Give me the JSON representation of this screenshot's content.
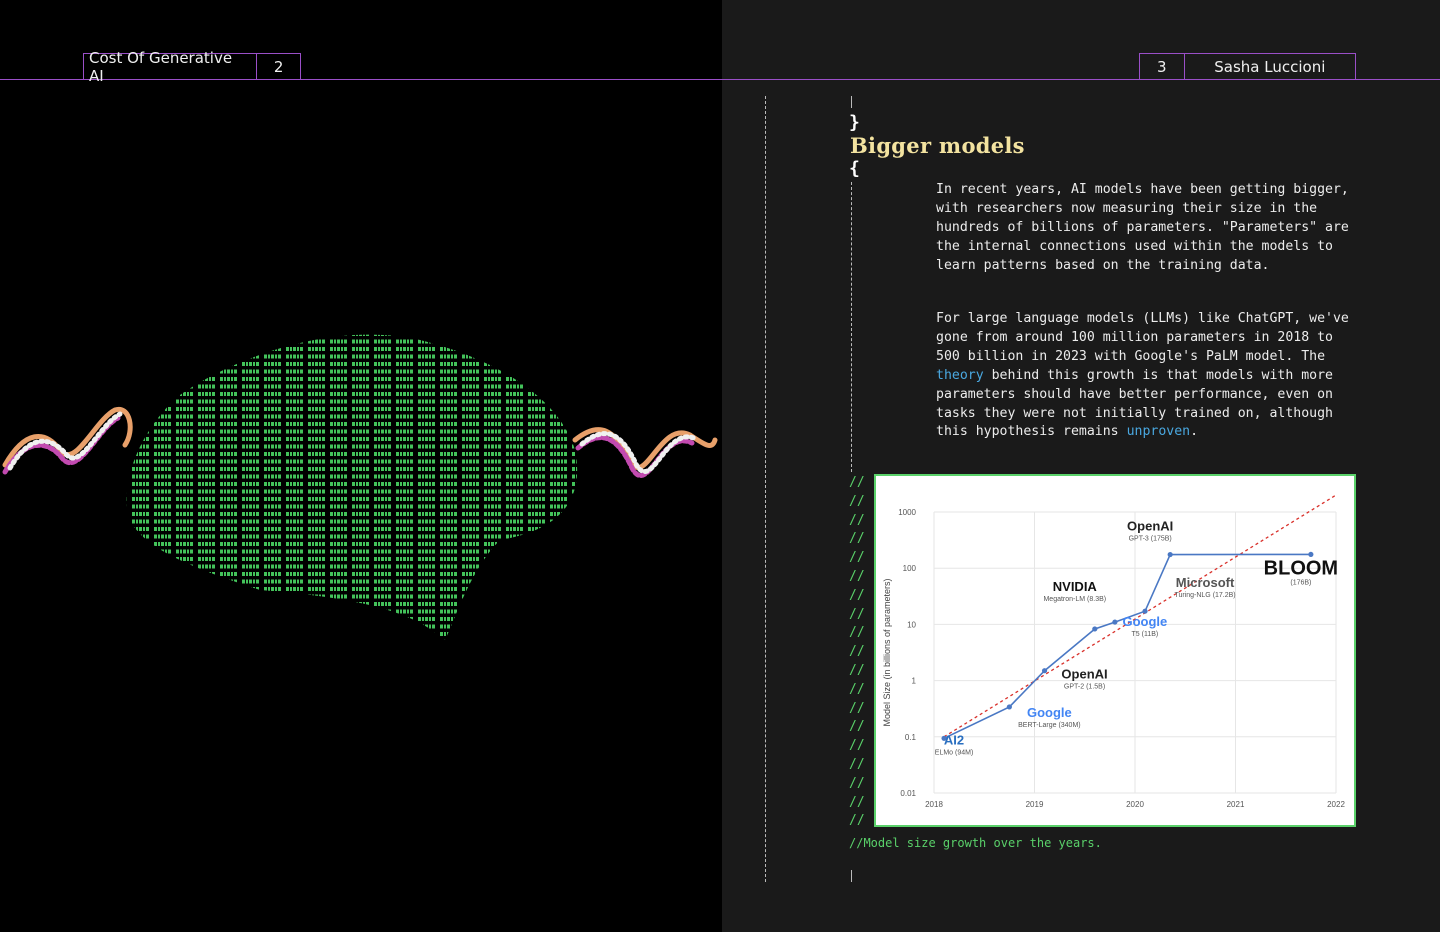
{
  "header": {
    "left_title": "Cost Of Generative AI",
    "left_page": "2",
    "right_page": "3",
    "right_author": "Sasha Luccioni"
  },
  "section": {
    "close_brace": "}",
    "title": "Bigger models",
    "open_brace": "{"
  },
  "paragraphs": {
    "p1": "In recent years, AI models have been getting bigger, with researchers now measuring their size in the hundreds of billions of parameters. \"Parameters\" are the internal connections used within the models to learn patterns based on the training data.",
    "p2_a": "For large language models (LLMs) like ChatGPT, we've gone from around 100 million parameters in 2018 to 500 billion in 2023 with Google's PaLM model. The ",
    "p2_link1": "theory",
    "p2_b": " behind this growth is that models with more parameters should have better performance, even on tasks they were not initially trained on, although this hypothesis remains ",
    "p2_link2": "unproven",
    "p2_c": "."
  },
  "comment_marker": "//",
  "caption": "//Model size growth over the years.",
  "colors": {
    "accent_purple": "#9a4fc8",
    "title_yellow": "#f3e3a0",
    "code_green": "#5ad16a",
    "link_blue": "#4aa8e0"
  },
  "chart_data": {
    "type": "line",
    "ylabel": "Model Size (in billions of parameters)",
    "xlabel": "",
    "yscale": "log",
    "ylim": [
      0.01,
      1000
    ],
    "xlim": [
      2018,
      2022
    ],
    "xticks": [
      "2018",
      "2019",
      "2020",
      "2021",
      "2022"
    ],
    "yticks": [
      "0.01",
      "0.1",
      "1",
      "10",
      "100",
      "1000"
    ],
    "points": [
      {
        "x": 2018.1,
        "y": 0.094,
        "org": "AI2",
        "label": "ELMo (94M)"
      },
      {
        "x": 2018.75,
        "y": 0.34,
        "org": "Google",
        "label": "BERT-Large (340M)"
      },
      {
        "x": 2019.1,
        "y": 1.5,
        "org": "OpenAI",
        "label": "GPT-2 (1.5B)"
      },
      {
        "x": 2019.6,
        "y": 8.3,
        "org": "NVIDIA",
        "label": "Megatron-LM (8.3B)"
      },
      {
        "x": 2019.8,
        "y": 11,
        "org": "Google",
        "label": "T5 (11B)"
      },
      {
        "x": 2020.1,
        "y": 17.2,
        "org": "Microsoft",
        "label": "Turing-NLG (17.2B)"
      },
      {
        "x": 2020.35,
        "y": 175,
        "org": "OpenAI",
        "label": "GPT-3 (175B)"
      },
      {
        "x": 2021.75,
        "y": 176,
        "org": "BLOOM",
        "label": "(176B)"
      }
    ],
    "trend_line": {
      "style": "dashed",
      "color": "#d9302a"
    },
    "grid": true
  }
}
